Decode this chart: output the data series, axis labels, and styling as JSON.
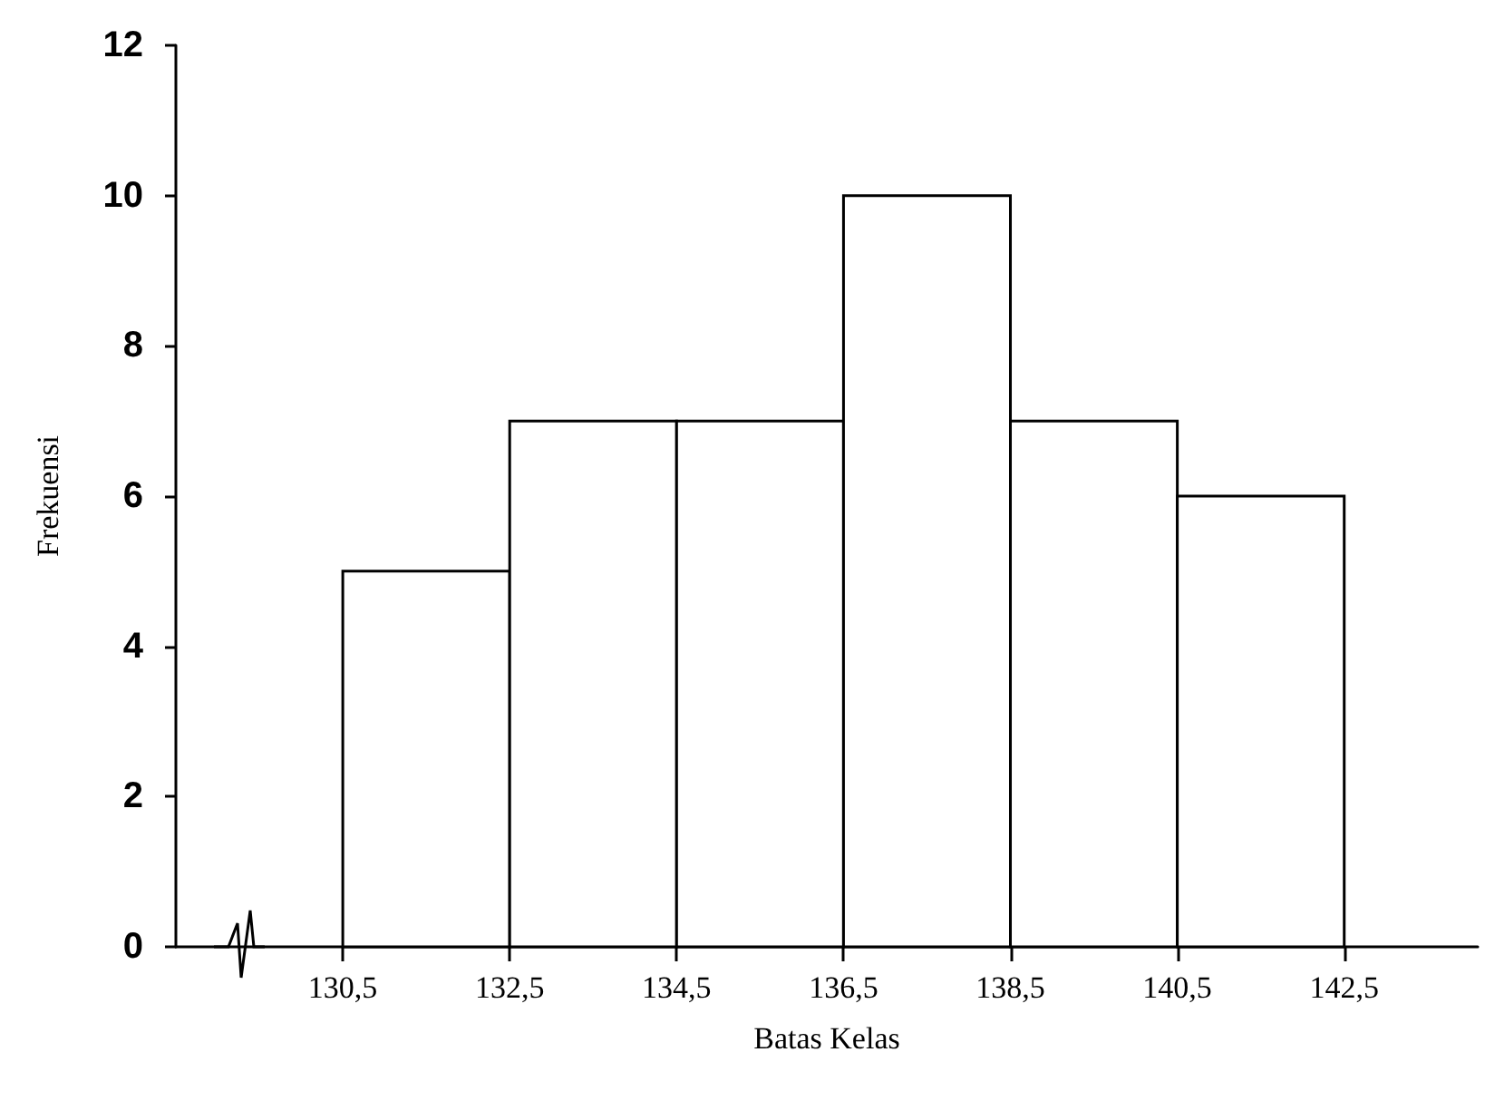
{
  "chart_data": {
    "type": "histogram",
    "xlabel": "Batas Kelas",
    "ylabel": "Frekuensi",
    "bins": [
      130.5,
      132.5,
      134.5,
      136.5,
      138.5,
      140.5,
      142.5
    ],
    "values": [
      5,
      7,
      7,
      10,
      7,
      6
    ],
    "color": "#ffffff",
    "xlim": [
      128.5,
      144.1
    ],
    "xticks": [
      {
        "value": 130.5,
        "label": "130,5"
      },
      {
        "value": 132.5,
        "label": "132,5"
      },
      {
        "value": 134.5,
        "label": "134,5"
      },
      {
        "value": 136.5,
        "label": "136,5"
      },
      {
        "value": 138.5,
        "label": "138,5"
      },
      {
        "value": 140.5,
        "label": "140,5"
      },
      {
        "value": 142.5,
        "label": "142,5"
      }
    ],
    "ylim": [
      0,
      12
    ],
    "yticks": [
      0,
      2,
      4,
      6,
      8,
      10,
      12
    ],
    "grid": false
  }
}
